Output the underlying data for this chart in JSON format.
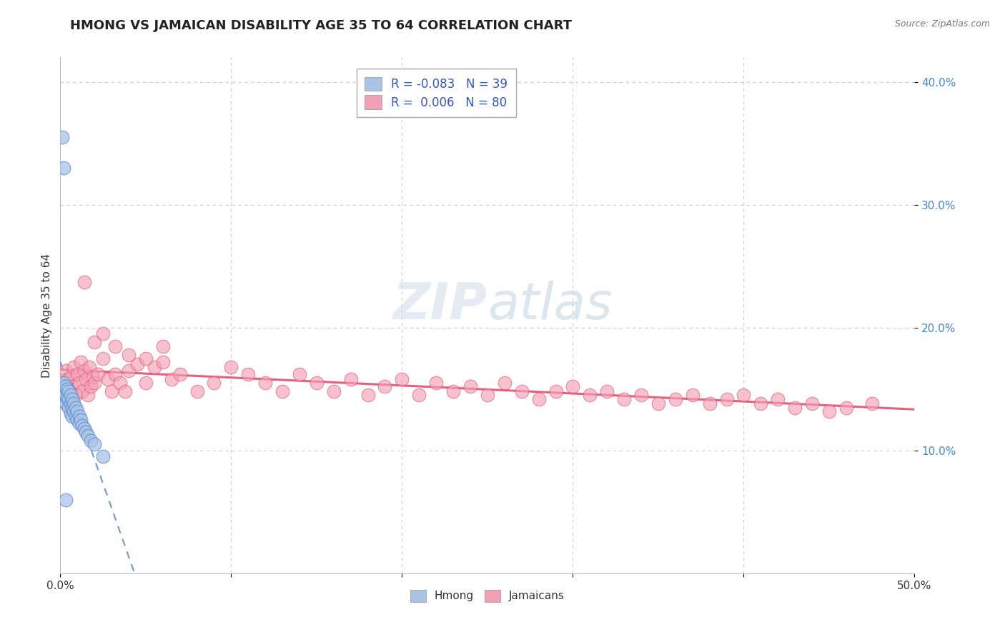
{
  "title": "HMONG VS JAMAICAN DISABILITY AGE 35 TO 64 CORRELATION CHART",
  "source_text": "Source: ZipAtlas.com",
  "ylabel": "Disability Age 35 to 64",
  "xlim": [
    0.0,
    0.5
  ],
  "ylim": [
    0.0,
    0.42
  ],
  "grid_color": "#cccccc",
  "background_color": "#ffffff",
  "hmong_color": "#aac4e8",
  "jamaican_color": "#f4a0b4",
  "hmong_line_color": "#5588cc",
  "jamaican_line_color": "#e05878",
  "ytick_color": "#4488cc",
  "xtick_color": "#333333",
  "legend_r_color": "#3355cc",
  "legend_n_color": "#3355cc",
  "watermark_color": "#c8d8e8",
  "watermark_text": "ZIPatlas",
  "hmong_x": [
    0.001,
    0.001,
    0.001,
    0.002,
    0.002,
    0.002,
    0.003,
    0.003,
    0.003,
    0.004,
    0.004,
    0.005,
    0.005,
    0.005,
    0.006,
    0.006,
    0.006,
    0.007,
    0.007,
    0.007,
    0.008,
    0.008,
    0.009,
    0.009,
    0.01,
    0.01,
    0.011,
    0.011,
    0.012,
    0.013,
    0.014,
    0.015,
    0.016,
    0.018,
    0.02,
    0.025,
    0.001,
    0.002,
    0.003
  ],
  "hmong_y": [
    0.153,
    0.148,
    0.143,
    0.155,
    0.148,
    0.14,
    0.152,
    0.145,
    0.138,
    0.15,
    0.143,
    0.148,
    0.142,
    0.135,
    0.145,
    0.138,
    0.13,
    0.142,
    0.135,
    0.128,
    0.138,
    0.132,
    0.135,
    0.128,
    0.132,
    0.125,
    0.128,
    0.122,
    0.125,
    0.12,
    0.118,
    0.115,
    0.112,
    0.108,
    0.105,
    0.095,
    0.355,
    0.33,
    0.06
  ],
  "jamaican_x": [
    0.002,
    0.003,
    0.004,
    0.005,
    0.006,
    0.007,
    0.008,
    0.009,
    0.01,
    0.011,
    0.012,
    0.013,
    0.014,
    0.015,
    0.016,
    0.017,
    0.018,
    0.019,
    0.02,
    0.022,
    0.025,
    0.028,
    0.03,
    0.032,
    0.035,
    0.038,
    0.04,
    0.045,
    0.05,
    0.055,
    0.06,
    0.065,
    0.07,
    0.08,
    0.09,
    0.1,
    0.11,
    0.12,
    0.13,
    0.14,
    0.15,
    0.16,
    0.17,
    0.18,
    0.19,
    0.2,
    0.21,
    0.22,
    0.23,
    0.24,
    0.25,
    0.26,
    0.27,
    0.28,
    0.29,
    0.3,
    0.31,
    0.32,
    0.33,
    0.34,
    0.35,
    0.36,
    0.37,
    0.38,
    0.39,
    0.4,
    0.41,
    0.42,
    0.43,
    0.44,
    0.45,
    0.46,
    0.014,
    0.02,
    0.025,
    0.032,
    0.04,
    0.05,
    0.06,
    0.475
  ],
  "jamaican_y": [
    0.155,
    0.165,
    0.158,
    0.148,
    0.16,
    0.152,
    0.168,
    0.145,
    0.162,
    0.155,
    0.172,
    0.148,
    0.165,
    0.158,
    0.145,
    0.168,
    0.152,
    0.16,
    0.155,
    0.162,
    0.175,
    0.158,
    0.148,
    0.162,
    0.155,
    0.148,
    0.165,
    0.17,
    0.155,
    0.168,
    0.172,
    0.158,
    0.162,
    0.148,
    0.155,
    0.168,
    0.162,
    0.155,
    0.148,
    0.162,
    0.155,
    0.148,
    0.158,
    0.145,
    0.152,
    0.158,
    0.145,
    0.155,
    0.148,
    0.152,
    0.145,
    0.155,
    0.148,
    0.142,
    0.148,
    0.152,
    0.145,
    0.148,
    0.142,
    0.145,
    0.138,
    0.142,
    0.145,
    0.138,
    0.142,
    0.145,
    0.138,
    0.142,
    0.135,
    0.138,
    0.132,
    0.135,
    0.237,
    0.188,
    0.195,
    0.185,
    0.178,
    0.175,
    0.185,
    0.138
  ],
  "hmong_line_start_x": 0.0,
  "hmong_line_end_x": 0.5,
  "jamaican_line_start_x": 0.0,
  "jamaican_line_end_x": 0.5
}
